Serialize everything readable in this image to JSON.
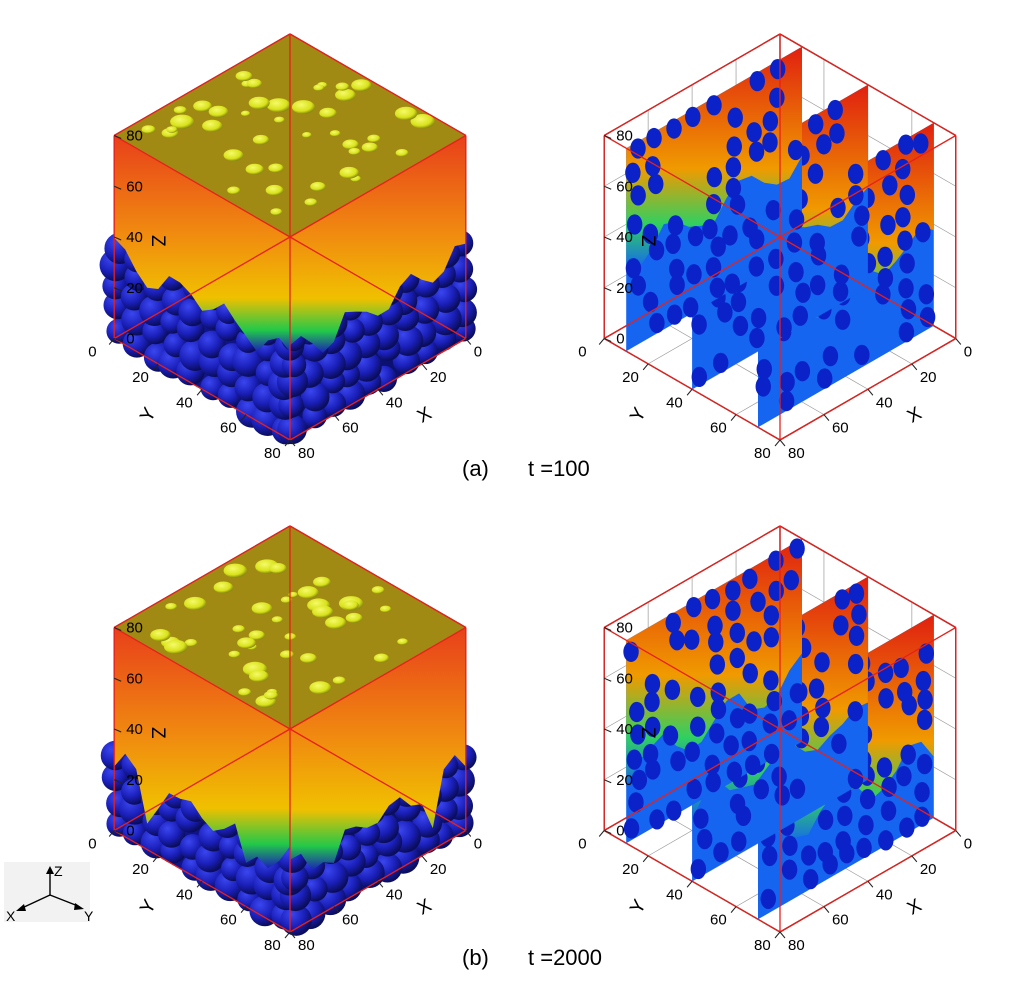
{
  "panels": [
    {
      "id": "a",
      "caption_letter": "(a)",
      "caption_time": "t =100",
      "front_depth": 40
    },
    {
      "id": "b",
      "caption_letter": "(b)",
      "caption_time": "t =2000",
      "front_depth": 48
    }
  ],
  "axes": {
    "x_label": "X",
    "y_label": "Y",
    "z_label": "Z",
    "x_ticks": [
      "0",
      "20",
      "40",
      "60",
      "80"
    ],
    "y_ticks": [
      "0",
      "20",
      "40",
      "60",
      "80"
    ],
    "z_ticks": [
      "0",
      "20",
      "40",
      "60",
      "80"
    ]
  },
  "orientation_triad": {
    "z": "Z",
    "x": "X",
    "y": "Y"
  },
  "colors": {
    "bounding_box": "#e8201c",
    "frame": "#222222",
    "grid": "#9a9a9a",
    "solid_spheres": "#1a1fb8",
    "slice_background": "#1565f0",
    "slice_obstacle": "#0a22c8",
    "top_surface": "#a08a14",
    "top_bubbles": "#d8e21a",
    "interface_hot": "#e8401a",
    "interface_warm": "#f0a000",
    "interface_green": "#22c84a"
  }
}
